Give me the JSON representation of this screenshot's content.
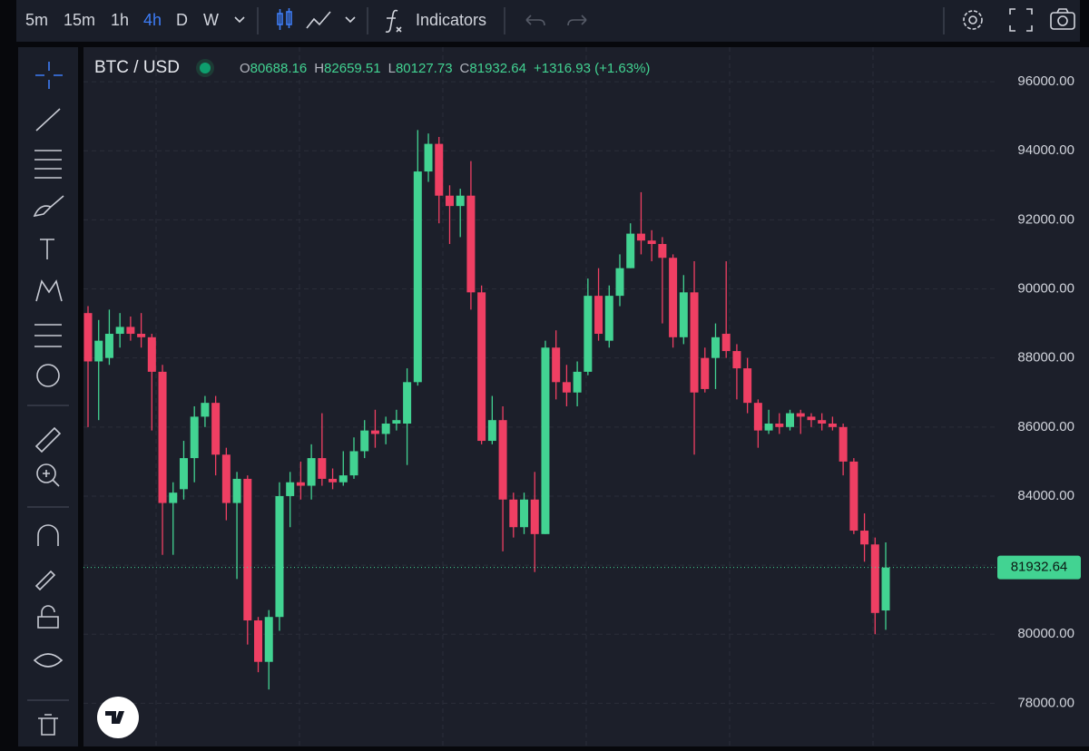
{
  "toolbar": {
    "intervals": [
      "5m",
      "15m",
      "1h",
      "4h",
      "D",
      "W"
    ],
    "indicators": "Indicators"
  },
  "chart_data": {
    "type": "candlestick",
    "symbol": "BTC / USD",
    "header_labels": [
      "O",
      "H",
      "L",
      "C"
    ],
    "change_label": "+1316.93 (+1.63%)",
    "up_color": "#42d392",
    "down_color": "#ef3f63",
    "grid": true,
    "ylim": [
      76750,
      97000
    ],
    "yticks": [
      {
        "value": 78000,
        "label": "78000.00"
      },
      {
        "value": 80000,
        "label": "80000.00"
      },
      {
        "value": 82000,
        "label": "82000.00"
      },
      {
        "value": 84000,
        "label": "84000.00"
      },
      {
        "value": 86000,
        "label": "86000.00"
      },
      {
        "value": 88000,
        "label": "88000.00"
      },
      {
        "value": 90000,
        "label": "90000.00"
      },
      {
        "value": 92000,
        "label": "92000.00"
      },
      {
        "value": 94000,
        "label": "94000.00"
      },
      {
        "value": 96000,
        "label": "96000.00"
      }
    ],
    "series": [
      {
        "name": "BTC / USD",
        "open": [
          89300,
          87900,
          88000,
          88700,
          88900,
          88700,
          88600,
          87600,
          83800,
          84200,
          85100,
          86300,
          86700,
          85200,
          83800,
          84500,
          80400,
          79200,
          80500,
          84000,
          84400,
          84300,
          85100,
          84500,
          84400,
          84600,
          85300,
          85900,
          85800,
          86100,
          86100,
          87300,
          93400,
          94200,
          92700,
          92400,
          92700,
          89900,
          85600,
          86200,
          83900,
          83100,
          83900,
          82900,
          88300,
          87300,
          87000,
          87600,
          89800,
          88500,
          89800,
          90600,
          91600,
          91400,
          91300,
          90900,
          88600,
          89900,
          88000,
          88000,
          88700,
          88200,
          87700,
          86700,
          85900,
          86100,
          86000,
          86400,
          86300,
          86200,
          86100,
          86000,
          85000,
          83000,
          82600,
          80688.16
        ],
        "high": [
          89500,
          89100,
          89400,
          89300,
          89200,
          89300,
          88700,
          87800,
          84400,
          85600,
          86600,
          86900,
          86900,
          85400,
          84700,
          84600,
          80500,
          80700,
          84400,
          84700,
          85000,
          85500,
          86400,
          84800,
          85300,
          85700,
          86200,
          86500,
          86300,
          86500,
          87700,
          94600,
          94500,
          94400,
          93000,
          92900,
          93700,
          90100,
          86900,
          86600,
          84100,
          84100,
          84700,
          88500,
          88800,
          87800,
          87900,
          90300,
          90600,
          90100,
          91000,
          91900,
          92800,
          91700,
          91500,
          91000,
          90400,
          90800,
          88300,
          89000,
          90800,
          88400,
          88000,
          86800,
          86500,
          86400,
          86500,
          86500,
          86400,
          86400,
          86300,
          86100,
          85100,
          83500,
          82800,
          82659.51
        ],
        "low": [
          86000,
          86200,
          87800,
          88300,
          88500,
          88300,
          85900,
          82300,
          82300,
          83900,
          84400,
          86000,
          84600,
          83300,
          81600,
          79700,
          78900,
          78400,
          80100,
          83100,
          83900,
          83900,
          84300,
          84200,
          84300,
          84500,
          85100,
          85400,
          85500,
          85900,
          84900,
          87200,
          93100,
          91900,
          91300,
          91500,
          89400,
          85500,
          85500,
          82400,
          82800,
          82900,
          81800,
          82900,
          86800,
          86600,
          86600,
          87500,
          88500,
          88300,
          89500,
          90600,
          91000,
          90800,
          89000,
          88300,
          88400,
          85200,
          87000,
          87100,
          88000,
          86800,
          86400,
          85400,
          85800,
          85800,
          85900,
          85800,
          86000,
          85900,
          85900,
          84600,
          82900,
          82100,
          80000,
          80127.73
        ],
        "close": [
          87900,
          88500,
          88700,
          88900,
          88700,
          88600,
          87600,
          83800,
          84100,
          85100,
          86300,
          86700,
          85200,
          83800,
          84500,
          80400,
          79200,
          80500,
          84000,
          84400,
          84300,
          85100,
          84500,
          84400,
          84600,
          85300,
          85900,
          85800,
          86100,
          86200,
          87300,
          93400,
          94200,
          92700,
          92400,
          92700,
          89900,
          85600,
          86200,
          83900,
          83100,
          83900,
          82900,
          88300,
          87300,
          87000,
          87600,
          89800,
          88700,
          89800,
          90600,
          91600,
          91400,
          91300,
          90900,
          88600,
          89900,
          87000,
          87100,
          88600,
          88200,
          87700,
          86700,
          85900,
          86100,
          86000,
          86400,
          86300,
          86200,
          86100,
          86000,
          85000,
          83000,
          82600,
          80616,
          81932.64
        ]
      }
    ]
  }
}
